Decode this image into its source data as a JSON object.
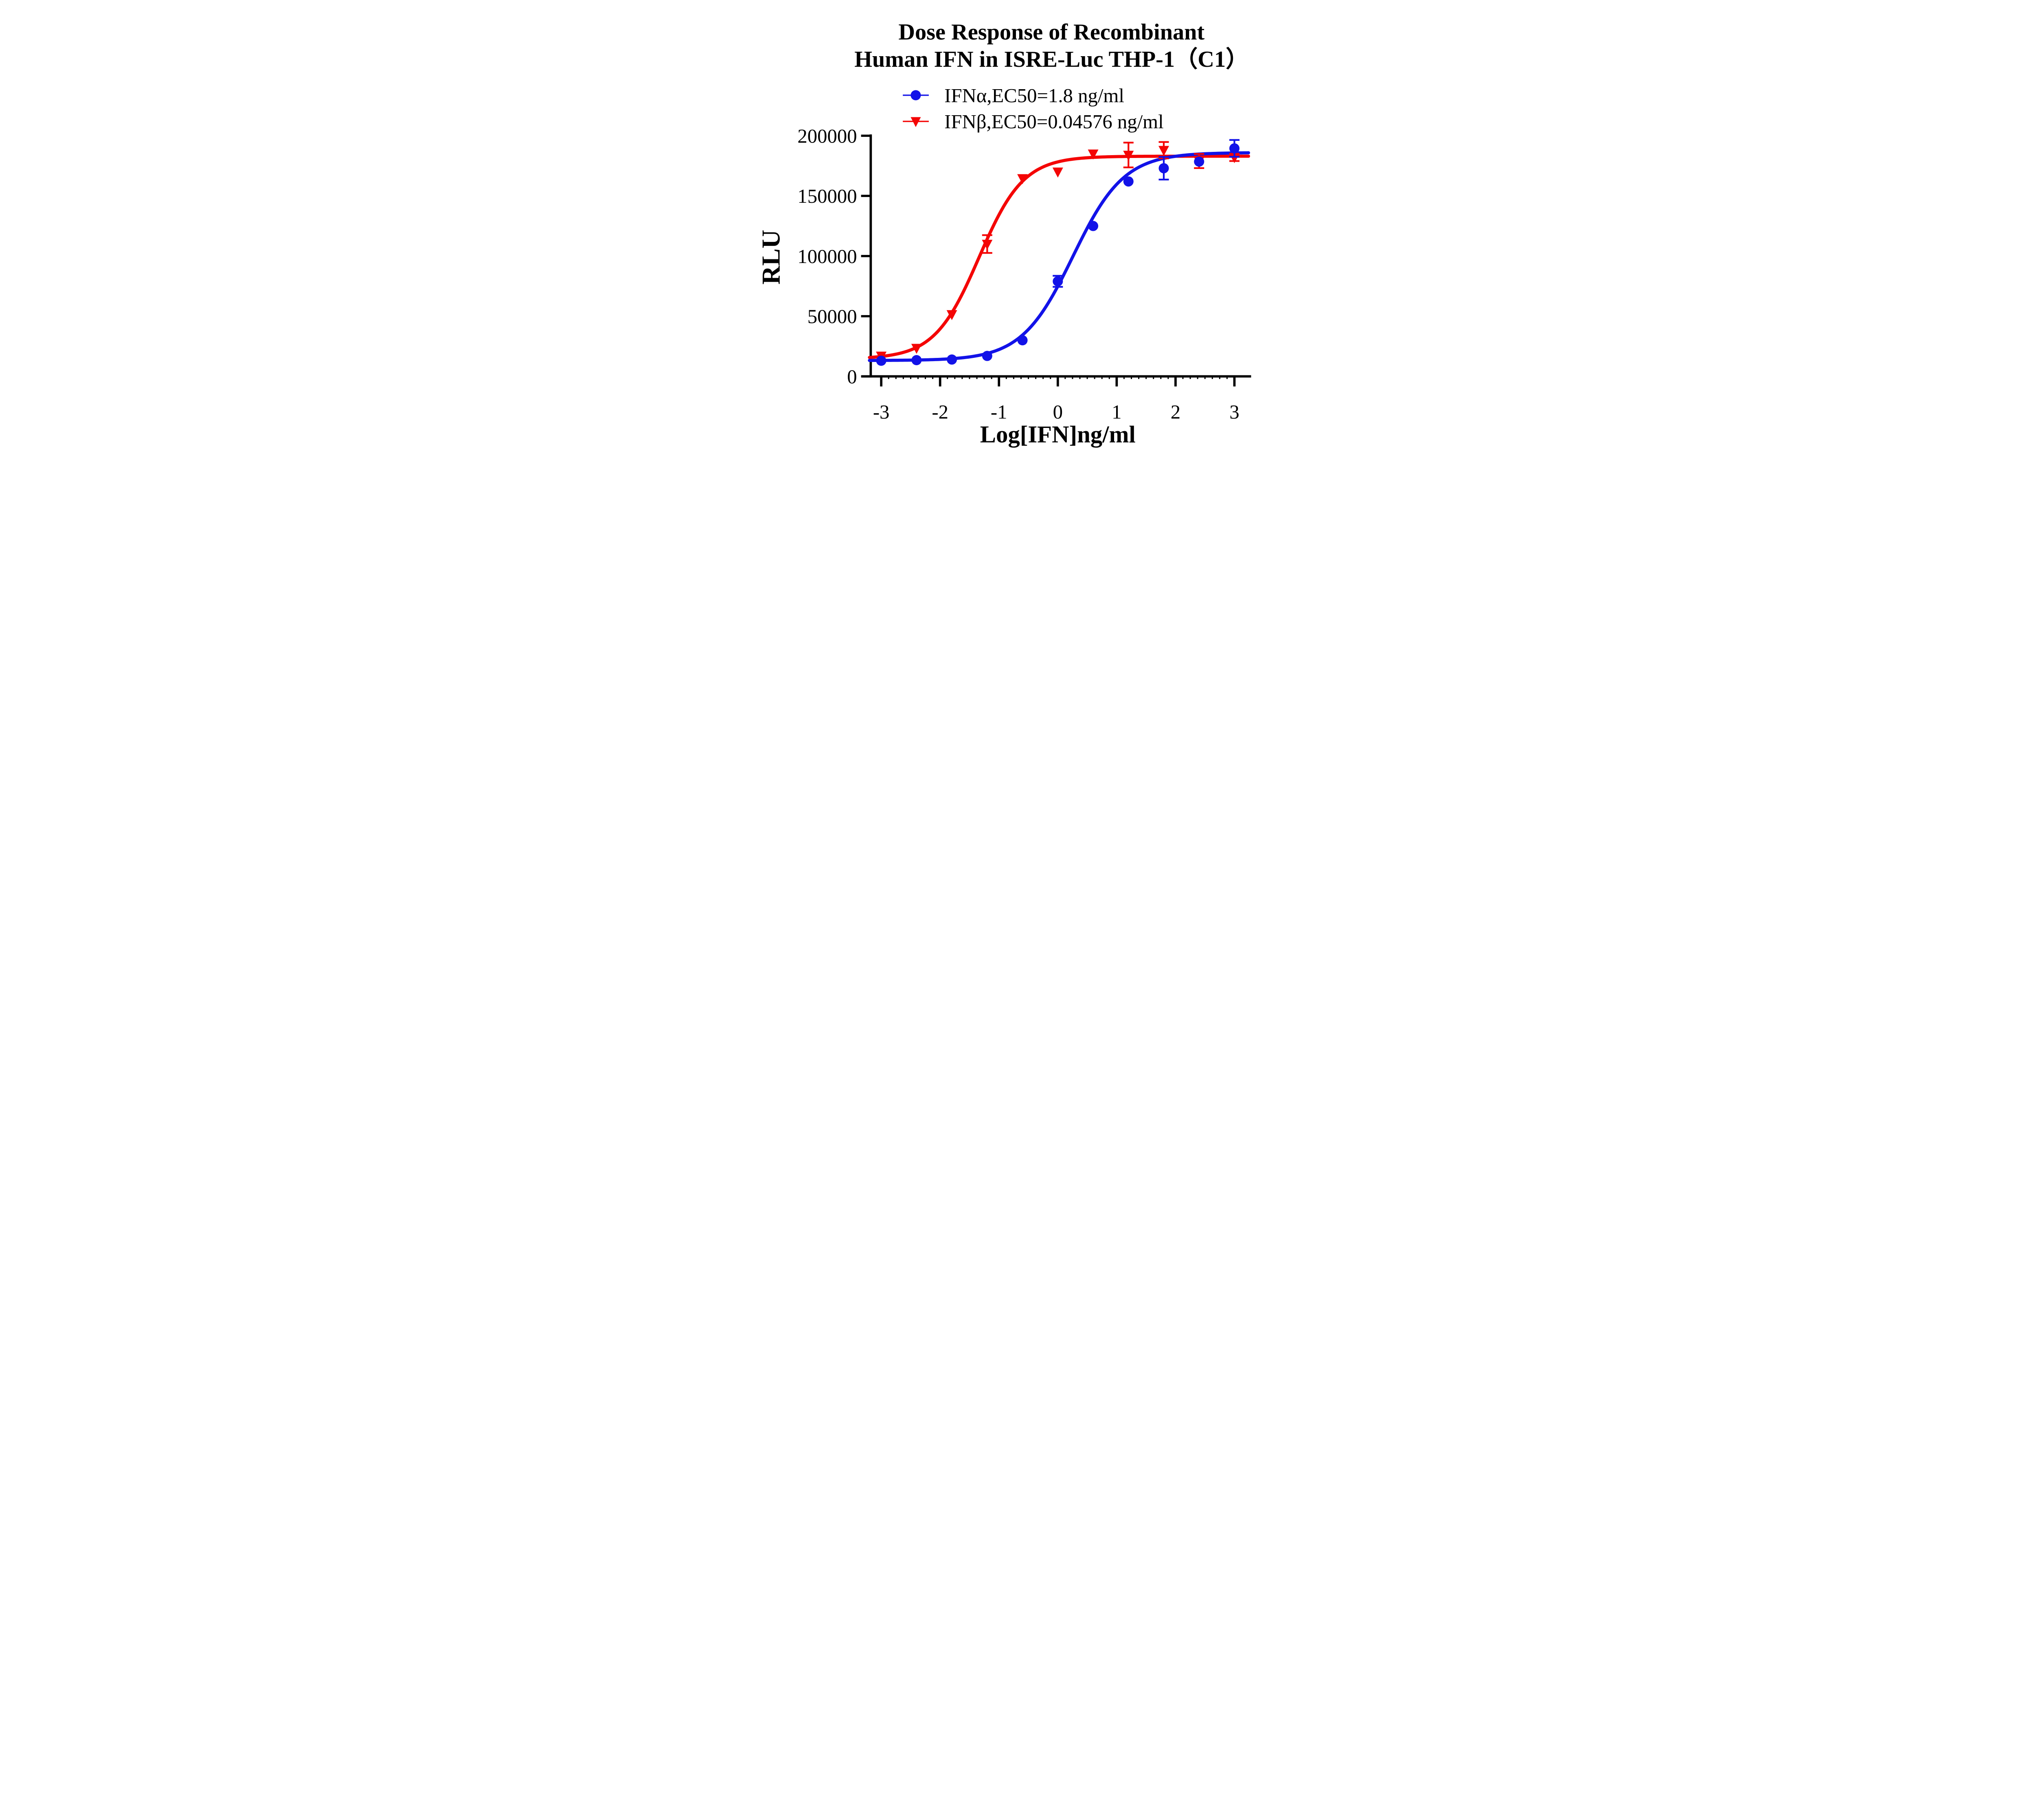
{
  "figure": {
    "background": "#ffffff",
    "text_color": "#000000"
  },
  "chart_data": {
    "type": "scatter",
    "title": "Dose Response of Recombinant Human IFN in ISRE-Luc THP-1（C1）",
    "title_lines": [
      "Dose Response of Recombinant",
      "Human IFN in ISRE-Luc THP-1（C1）"
    ],
    "xlabel": "Log[IFN]ng/ml",
    "ylabel": "RLU",
    "xlim": [
      -3.2,
      3.27
    ],
    "ylim": [
      0,
      200000
    ],
    "x_ticks": [
      -3,
      -2,
      -1,
      0,
      1,
      2,
      3
    ],
    "y_ticks": [
      0,
      50000,
      100000,
      150000,
      200000
    ],
    "grid": false,
    "legend_position": "top-center",
    "axis_color": "#000000",
    "series": [
      {
        "name": "IFNα,EC50=1.8 ng/ml",
        "analyte": "IFNα",
        "ec50_ng_ml": 1.8,
        "color": "#1212E8",
        "marker": "circle",
        "x": [
          -3,
          -2.4,
          -1.8,
          -1.2,
          -0.6,
          0,
          0.6,
          1.2,
          1.8,
          2.4,
          3
        ],
        "y": [
          13000,
          13500,
          14000,
          17000,
          30000,
          79000,
          125000,
          162000,
          173000,
          178500,
          189500
        ],
        "y_err": [
          0,
          0,
          0,
          0,
          0,
          4600,
          0,
          0,
          9400,
          0,
          7000
        ],
        "fit_4pl": {
          "bottom": 13200,
          "top": 186000,
          "log_ec50": 0.2553,
          "hill": 1.0
        }
      },
      {
        "name": "IFNβ,EC50=0.04576 ng/ml",
        "analyte": "IFNβ",
        "ec50_ng_ml": 0.04576,
        "color": "#F40505",
        "marker": "triangle-down",
        "x": [
          -3,
          -2.4,
          -1.8,
          -1.2,
          -0.6,
          0,
          0.6,
          1.2,
          1.8,
          2.4,
          3
        ],
        "y": [
          17000,
          23500,
          51500,
          110000,
          164500,
          170000,
          185000,
          184000,
          188000,
          179000,
          182000
        ],
        "y_err": [
          0,
          0,
          0,
          7400,
          0,
          0,
          0,
          10300,
          6800,
          5900,
          3000
        ],
        "fit_4pl": {
          "bottom": 14500,
          "top": 183000,
          "log_ec50": -1.3395,
          "hill": 1.15
        }
      }
    ]
  }
}
